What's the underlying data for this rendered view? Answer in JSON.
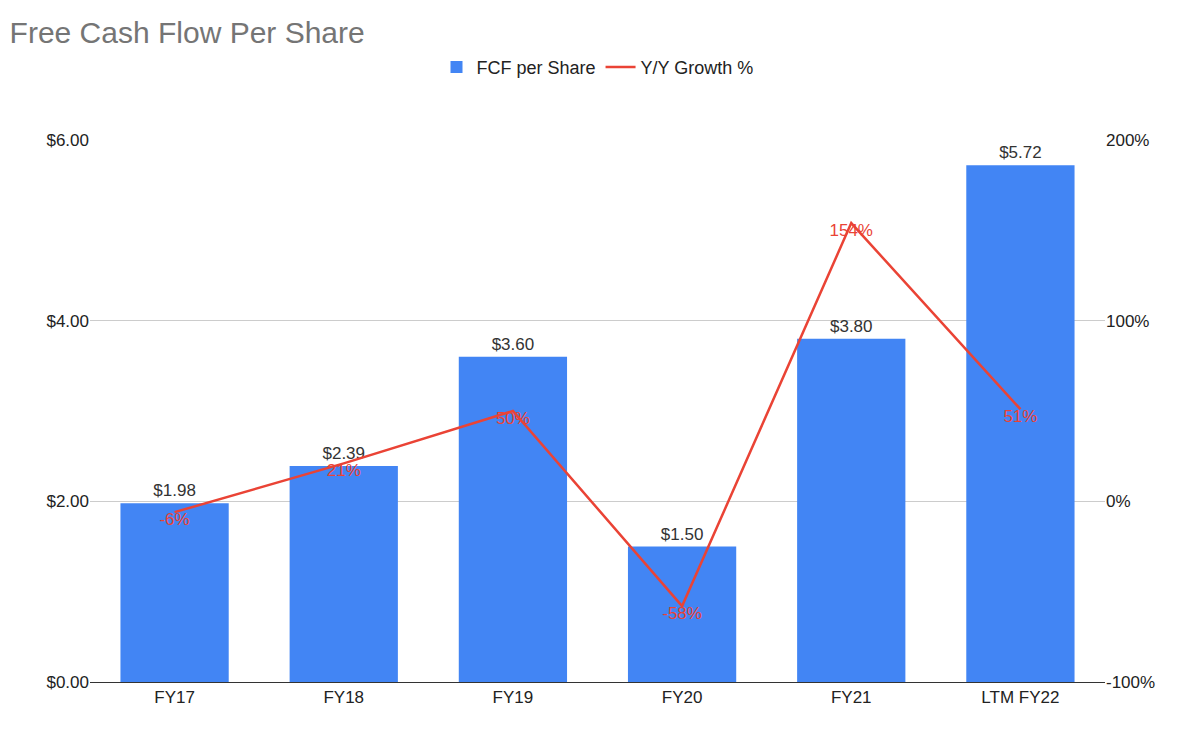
{
  "chart_data": {
    "type": "bar",
    "title": "Free Cash Flow Per Share",
    "categories": [
      "FY17",
      "FY18",
      "FY19",
      "FY20",
      "FY21",
      "LTM FY22"
    ],
    "series": [
      {
        "name": "FCF per Share",
        "type": "bar",
        "color": "#4285f4",
        "values": [
          1.98,
          2.39,
          3.6,
          1.5,
          3.8,
          5.72
        ],
        "value_labels": [
          "$1.98",
          "$2.39",
          "$3.60",
          "$1.50",
          "$3.80",
          "$5.72"
        ]
      },
      {
        "name": "Y/Y Growth %",
        "type": "line",
        "axis": "y2",
        "color": "#ea4335",
        "values": [
          -6,
          21,
          50,
          -58,
          154,
          51
        ],
        "value_labels": [
          "-6%",
          "21%",
          "50%",
          "-58%",
          "154%",
          "51%"
        ]
      }
    ],
    "ylim": [
      0,
      6
    ],
    "yticks": [
      {
        "value": 0,
        "label": "$0.00"
      },
      {
        "value": 2,
        "label": "$2.00"
      },
      {
        "value": 4,
        "label": "$4.00"
      },
      {
        "value": 6,
        "label": "$6.00"
      }
    ],
    "y2lim": [
      -100,
      200
    ],
    "y2ticks": [
      {
        "value": -100,
        "label": "-100%"
      },
      {
        "value": 0,
        "label": "0%"
      },
      {
        "value": 100,
        "label": "100%"
      },
      {
        "value": 200,
        "label": "200%"
      }
    ],
    "grid": true,
    "legend": "top",
    "data_labels": true
  }
}
